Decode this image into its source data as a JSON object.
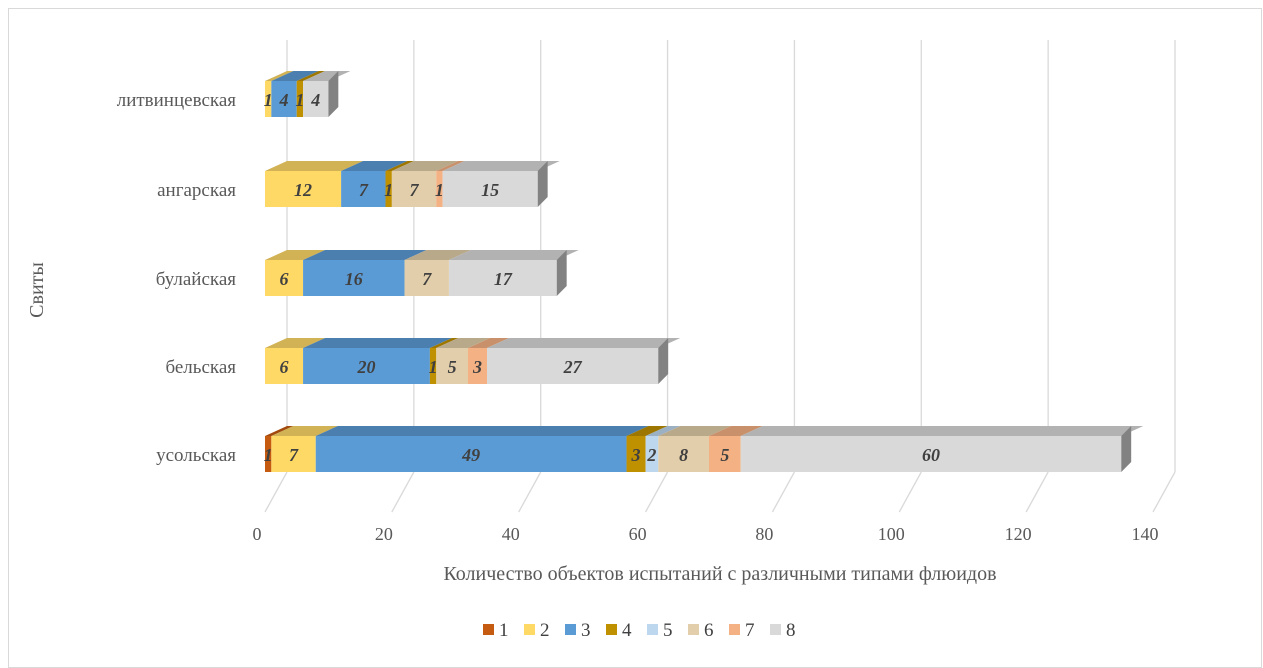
{
  "chart_data": {
    "type": "bar",
    "orientation": "horizontal",
    "stacked": true,
    "style": "3d",
    "xlabel": "Количество объектов испытаний с различными типами флюидов",
    "ylabel": "Свиты",
    "xlim": [
      0,
      140
    ],
    "x_ticks": [
      "0",
      "20",
      "40",
      "60",
      "80",
      "100",
      "120",
      "140"
    ],
    "grid": true,
    "legend_position": "bottom",
    "categories": [
      "усольская",
      "бельская",
      "булайская",
      "ангарская",
      "литвинцевская"
    ],
    "series": [
      {
        "name": "1",
        "color": "#c55a11",
        "values": [
          1,
          0,
          0,
          0,
          0
        ]
      },
      {
        "name": "2",
        "color": "#ffd966",
        "values": [
          7,
          6,
          6,
          12,
          1
        ]
      },
      {
        "name": "3",
        "color": "#5b9bd5",
        "values": [
          49,
          20,
          16,
          7,
          4
        ]
      },
      {
        "name": "4",
        "color": "#bf9000",
        "values": [
          3,
          1,
          0,
          1,
          1
        ]
      },
      {
        "name": "5",
        "color": "#bdd7ee",
        "values": [
          2,
          0,
          0,
          0,
          0
        ]
      },
      {
        "name": "6",
        "color": "#e2ceaa",
        "values": [
          8,
          5,
          7,
          7,
          0
        ]
      },
      {
        "name": "7",
        "color": "#f4b183",
        "values": [
          5,
          3,
          0,
          1,
          0
        ]
      },
      {
        "name": "8",
        "color": "#d9d9d9",
        "values": [
          60,
          27,
          17,
          15,
          4
        ]
      }
    ]
  }
}
